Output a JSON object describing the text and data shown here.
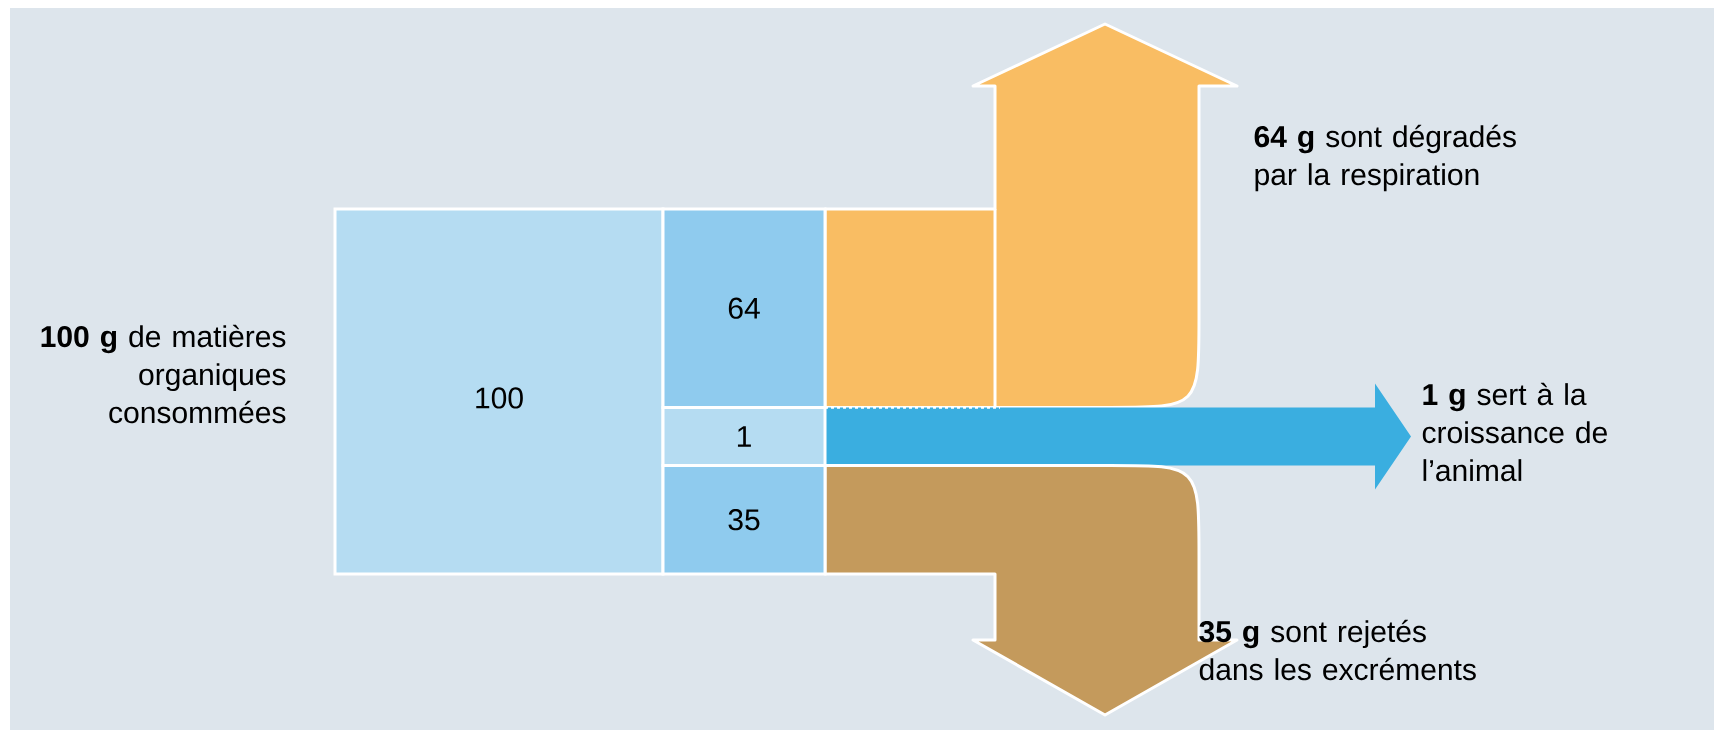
{
  "chart_data": {
    "type": "other",
    "categories": [
      "**64 g** sont dégradés par la respiration",
      "**1 g** sert à la croissance de l’animal",
      "**35 g** sont rejetés dans les excréments"
    ],
    "values": [
      64,
      1,
      35
    ],
    "colors": [
      "#8fcbee",
      "#b5dcf2",
      "#8fcbee"
    ],
    "data_labels": true,
    "annotations": [
      "**100 g** de matières organiques consommées",
      "100"
    ]
  }
}
